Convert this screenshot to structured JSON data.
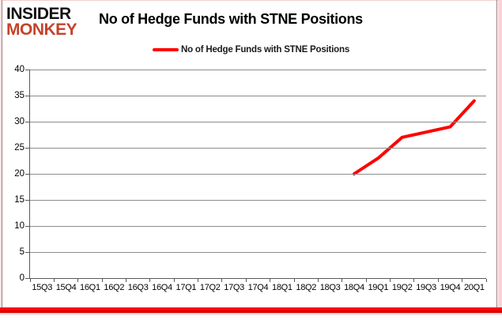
{
  "header": {
    "logo": {
      "line1": "INSIDER",
      "line2": "MONKEY"
    },
    "title": "No of Hedge Funds with STNE Positions"
  },
  "legend": {
    "label": "No of Hedge Funds with STNE Positions",
    "line_color": "#ff0000"
  },
  "chart_data": {
    "type": "line",
    "title": "No of Hedge Funds with STNE Positions",
    "categories": [
      "15Q3",
      "15Q4",
      "16Q1",
      "16Q2",
      "16Q3",
      "16Q4",
      "17Q1",
      "17Q2",
      "17Q3",
      "17Q4",
      "18Q1",
      "18Q2",
      "18Q3",
      "18Q4",
      "19Q1",
      "19Q2",
      "19Q3",
      "19Q4",
      "20Q1"
    ],
    "series": [
      {
        "name": "No of Hedge Funds with STNE Positions",
        "color": "#ff0000",
        "values": [
          null,
          null,
          null,
          null,
          null,
          null,
          null,
          null,
          null,
          null,
          null,
          null,
          null,
          20,
          23,
          27,
          28,
          29,
          34
        ]
      }
    ],
    "ylim": [
      0,
      40
    ],
    "ytick_step": 5,
    "y_ticks": [
      0,
      5,
      10,
      15,
      20,
      25,
      30,
      35,
      40
    ],
    "grid": true,
    "legend_position": "top",
    "xlabel": "",
    "ylabel": ""
  },
  "colors": {
    "accent_red": "#ff0000",
    "logo_red": "#c4432b",
    "gridline": "#8c8c8c",
    "axis": "#595959",
    "bottom_bar": "#ee0000",
    "frame_pink": "#fad3d6",
    "frame_maroon": "#9b8186"
  }
}
